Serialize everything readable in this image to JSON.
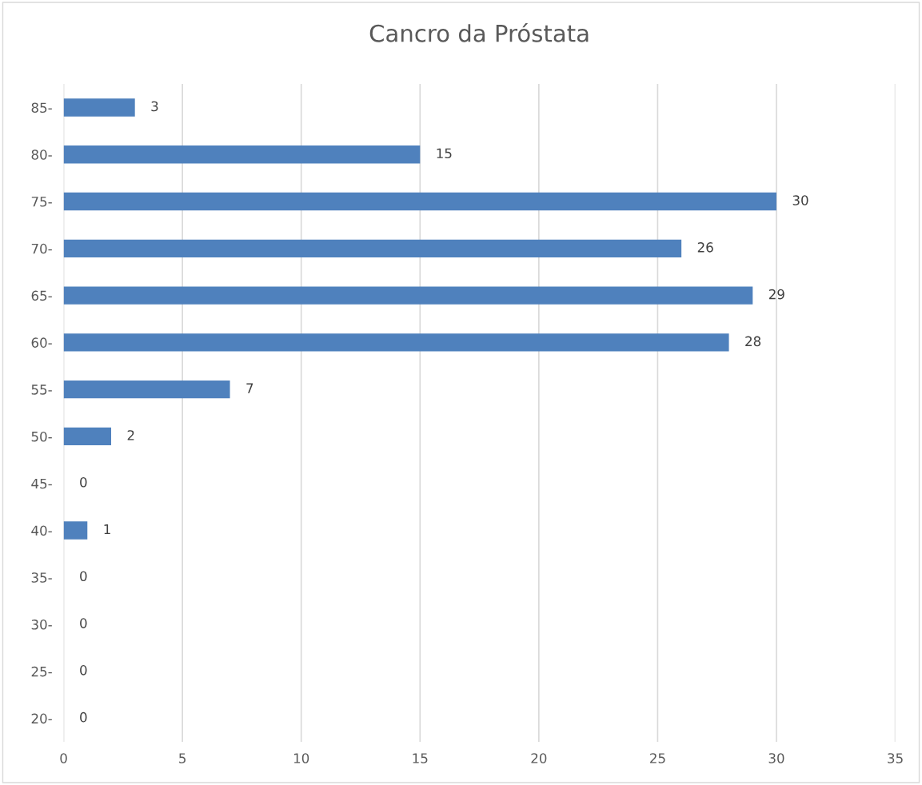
{
  "chart_data": {
    "type": "bar",
    "orientation": "horizontal",
    "title": "Cancro da Próstata",
    "categories": [
      "85-",
      "80-",
      "75-",
      "70-",
      "65-",
      "60-",
      "55-",
      "50-",
      "45-",
      "40-",
      "35-",
      "30-",
      "25-",
      "20-"
    ],
    "values": [
      3,
      15,
      30,
      26,
      29,
      28,
      7,
      2,
      0,
      1,
      0,
      0,
      0,
      0
    ],
    "color": "#4f81bd",
    "xlim": [
      0,
      35
    ],
    "xticks": [
      0,
      5,
      10,
      15,
      20,
      25,
      30,
      35
    ],
    "grid": "x",
    "data_labels": true
  }
}
